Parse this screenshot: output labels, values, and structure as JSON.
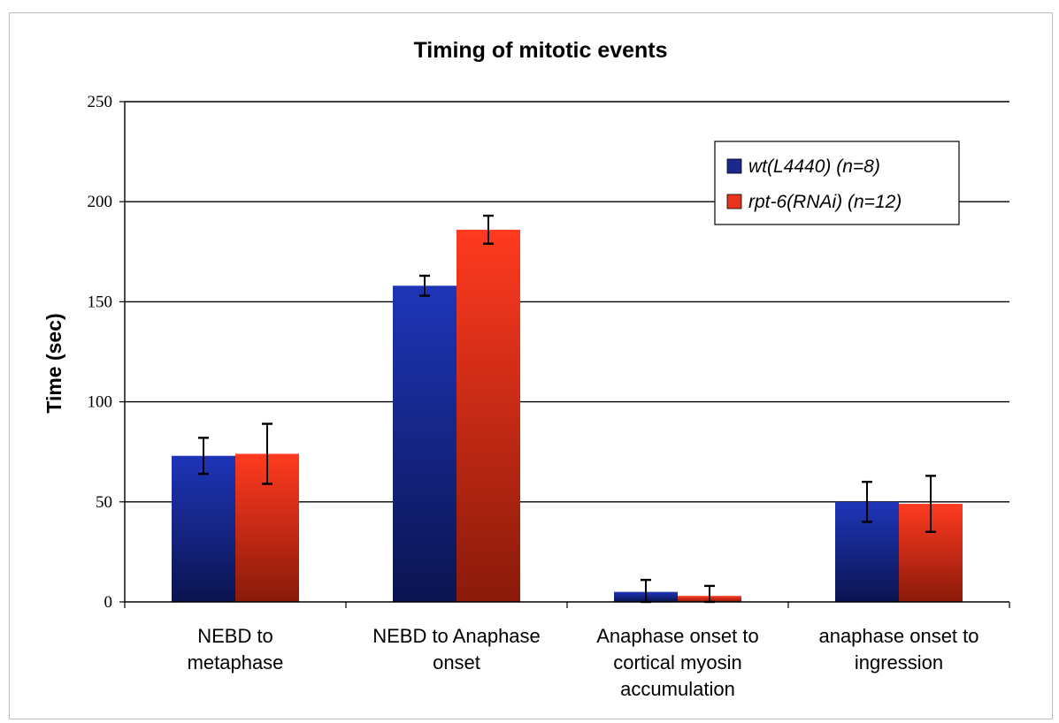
{
  "chart_data": {
    "type": "bar",
    "title": "Timing of mitotic events",
    "ylabel": "Time (sec)",
    "xlabel": "",
    "ylim": [
      0,
      250
    ],
    "yticks": [
      0,
      50,
      100,
      150,
      200,
      250
    ],
    "grid": true,
    "legend_position": "top-right",
    "categories": [
      [
        "NEBD to",
        "metaphase"
      ],
      [
        "NEBD to Anaphase",
        "onset"
      ],
      [
        "Anaphase onset to",
        "cortical myosin",
        "accumulation"
      ],
      [
        "anaphase onset to",
        "ingression"
      ]
    ],
    "series": [
      {
        "name": "wt(L4440) (n=8)",
        "color": "#1a2a8c",
        "values": [
          73,
          158,
          5,
          50
        ],
        "errors": [
          9,
          5,
          6,
          10
        ]
      },
      {
        "name": "rpt-6(RNAi) (n=12)",
        "color": "#e8341c",
        "values": [
          74,
          186,
          3,
          49
        ],
        "errors": [
          15,
          7,
          5,
          14
        ]
      }
    ]
  }
}
